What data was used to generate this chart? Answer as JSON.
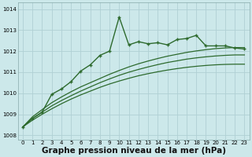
{
  "background_color": "#cce8ea",
  "grid_color": "#b0d0d4",
  "line_color": "#2d6a2d",
  "xlabel": "Graphe pression niveau de la mer (hPa)",
  "xlabel_fontsize": 7.5,
  "xlim_min": -0.5,
  "xlim_max": 23.5,
  "ylim_min": 1007.8,
  "ylim_max": 1014.3,
  "yticks": [
    1008,
    1009,
    1010,
    1011,
    1012,
    1013,
    1014
  ],
  "xticks": [
    0,
    1,
    2,
    3,
    4,
    5,
    6,
    7,
    8,
    9,
    10,
    11,
    12,
    13,
    14,
    15,
    16,
    17,
    18,
    19,
    20,
    21,
    22,
    23
  ],
  "series_main_x": [
    0,
    1,
    2,
    3,
    4,
    5,
    6,
    7,
    8,
    9,
    10,
    11,
    12,
    13,
    14,
    15,
    16,
    17,
    18,
    19,
    20,
    21,
    22,
    23
  ],
  "series_main_y": [
    1008.4,
    1008.8,
    1009.1,
    1009.95,
    1010.2,
    1010.55,
    1011.05,
    1011.35,
    1011.8,
    1012.0,
    1013.62,
    1012.3,
    1012.45,
    1012.35,
    1012.4,
    1012.3,
    1012.55,
    1012.6,
    1012.75,
    1012.25,
    1012.25,
    1012.25,
    1012.15,
    1012.1
  ],
  "series_s1_x": [
    0,
    1,
    2,
    3,
    4,
    5,
    6,
    7,
    8,
    9,
    10,
    11,
    12,
    13,
    14,
    15,
    16,
    17,
    18,
    19,
    20,
    21,
    22,
    23
  ],
  "series_s1_y": [
    1008.4,
    1008.72,
    1009.0,
    1009.26,
    1009.5,
    1009.72,
    1009.92,
    1010.1,
    1010.28,
    1010.44,
    1010.58,
    1010.71,
    1010.83,
    1010.93,
    1011.02,
    1011.1,
    1011.17,
    1011.23,
    1011.28,
    1011.32,
    1011.35,
    1011.37,
    1011.38,
    1011.38
  ],
  "series_s2_x": [
    0,
    1,
    2,
    3,
    4,
    5,
    6,
    7,
    8,
    9,
    10,
    11,
    12,
    13,
    14,
    15,
    16,
    17,
    18,
    19,
    20,
    21,
    22,
    23
  ],
  "series_s2_y": [
    1008.4,
    1008.8,
    1009.1,
    1009.4,
    1009.65,
    1009.88,
    1010.1,
    1010.3,
    1010.5,
    1010.68,
    1010.85,
    1011.0,
    1011.13,
    1011.25,
    1011.36,
    1011.46,
    1011.54,
    1011.62,
    1011.68,
    1011.73,
    1011.77,
    1011.8,
    1011.82,
    1011.82
  ],
  "series_s3_x": [
    0,
    1,
    2,
    3,
    4,
    5,
    6,
    7,
    8,
    9,
    10,
    11,
    12,
    13,
    14,
    15,
    16,
    17,
    18,
    19,
    20,
    21,
    22,
    23
  ],
  "series_s3_y": [
    1008.4,
    1008.88,
    1009.22,
    1009.55,
    1009.82,
    1010.07,
    1010.3,
    1010.5,
    1010.7,
    1010.9,
    1011.08,
    1011.25,
    1011.4,
    1011.53,
    1011.65,
    1011.76,
    1011.85,
    1011.94,
    1012.01,
    1012.07,
    1012.12,
    1012.15,
    1012.17,
    1012.17
  ]
}
